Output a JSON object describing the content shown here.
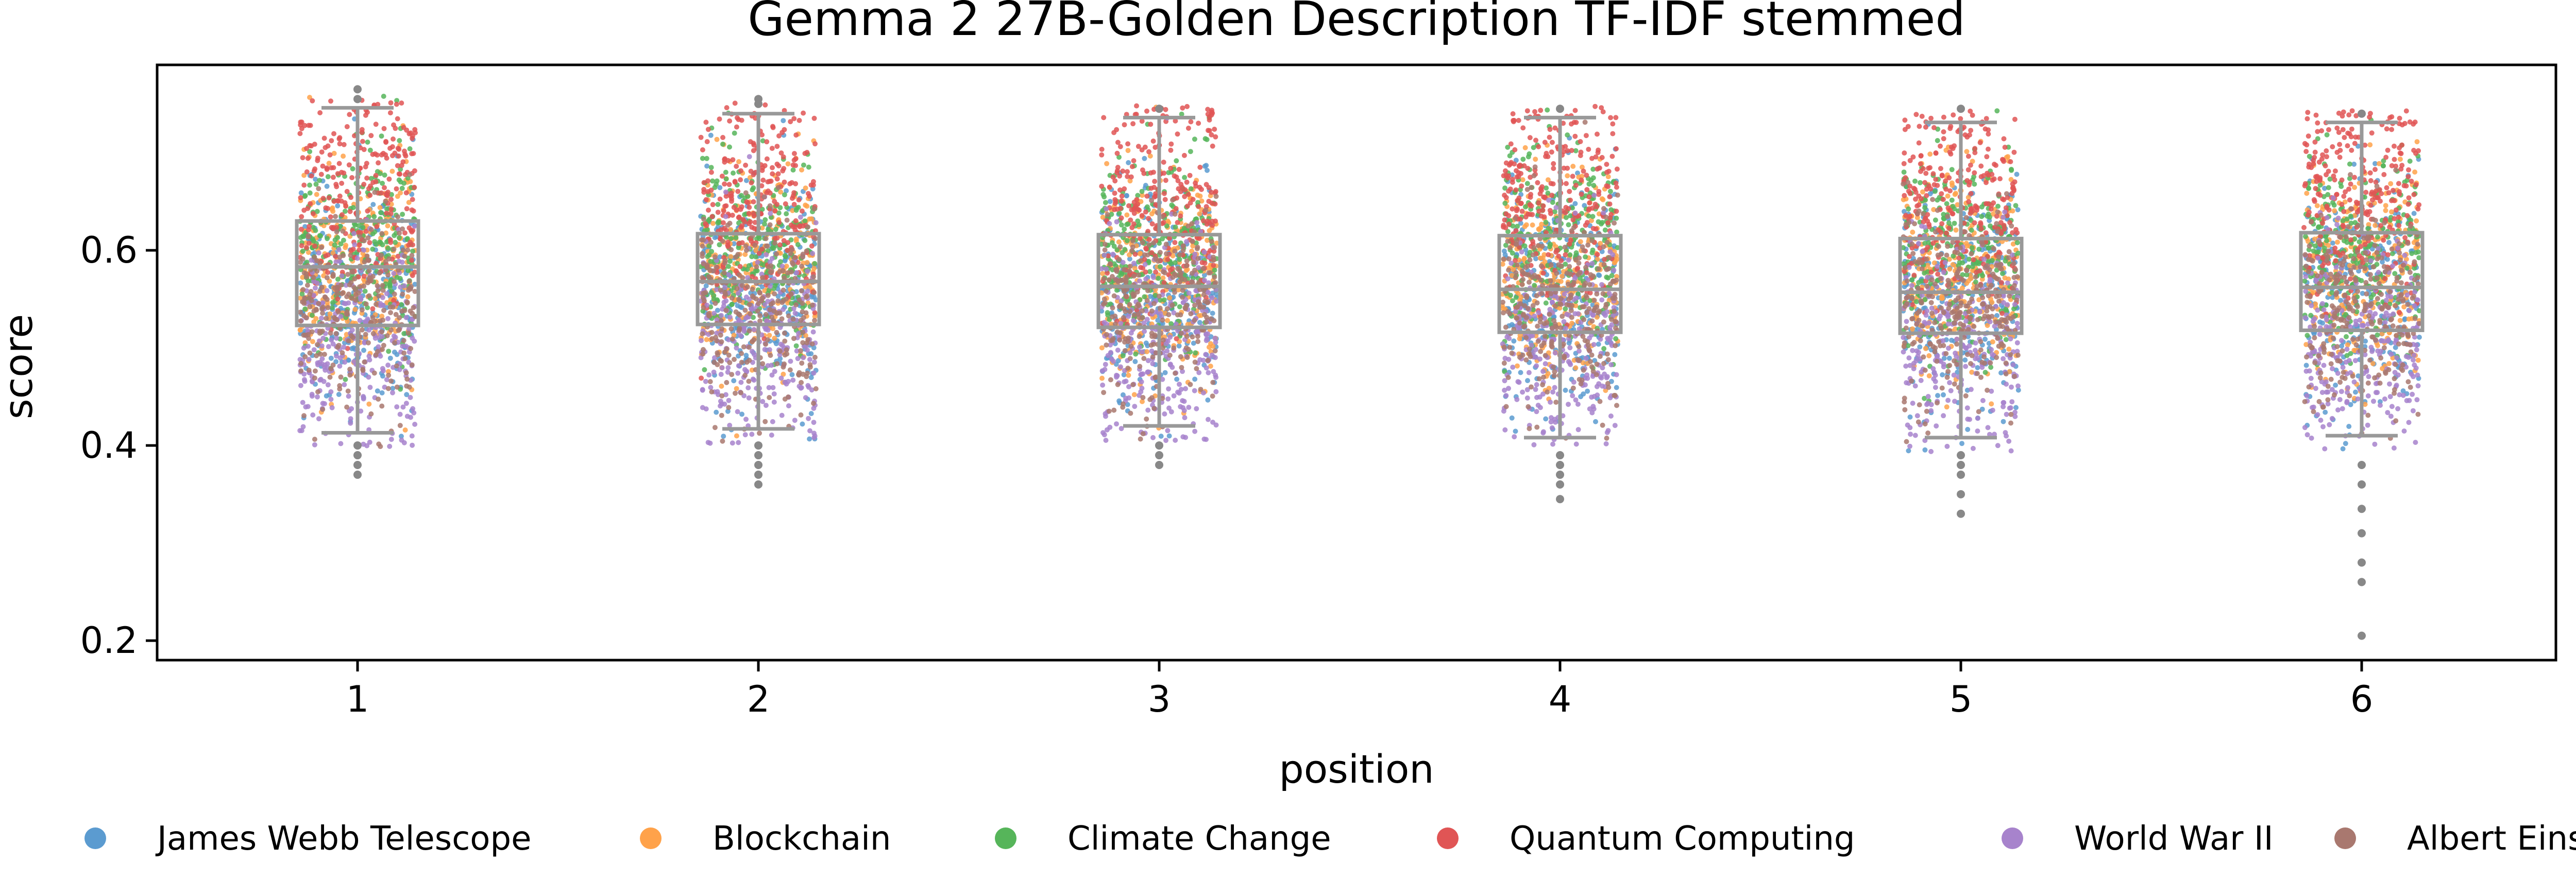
{
  "chart_data": {
    "type": "box-strip",
    "title": "Gemma 2 27B-Golden Description TF-IDF stemmed",
    "xlabel": "position",
    "ylabel": "score",
    "categories": [
      "1",
      "2",
      "3",
      "4",
      "5",
      "6"
    ],
    "ylim": [
      0.18,
      0.79
    ],
    "yticks": [
      {
        "value": 0.2,
        "label": "0.2"
      },
      {
        "value": 0.4,
        "label": "0.4"
      },
      {
        "value": 0.6,
        "label": "0.6"
      }
    ],
    "grid": false,
    "legend_position": "bottom",
    "box_color": "#999999",
    "box_stats": [
      {
        "position": "1",
        "whisker_low": 0.413,
        "q1": 0.523,
        "median": 0.583,
        "q3": 0.63,
        "whisker_high": 0.746
      },
      {
        "position": "2",
        "whisker_low": 0.417,
        "q1": 0.524,
        "median": 0.568,
        "q3": 0.617,
        "whisker_high": 0.74
      },
      {
        "position": "3",
        "whisker_low": 0.42,
        "q1": 0.521,
        "median": 0.563,
        "q3": 0.616,
        "whisker_high": 0.736
      },
      {
        "position": "4",
        "whisker_low": 0.408,
        "q1": 0.516,
        "median": 0.56,
        "q3": 0.615,
        "whisker_high": 0.736
      },
      {
        "position": "5",
        "whisker_low": 0.408,
        "q1": 0.515,
        "median": 0.557,
        "q3": 0.612,
        "whisker_high": 0.731
      },
      {
        "position": "6",
        "whisker_low": 0.41,
        "q1": 0.518,
        "median": 0.562,
        "q3": 0.618,
        "whisker_high": 0.731
      }
    ],
    "outliers": [
      {
        "position": "1",
        "values": [
          0.37,
          0.38,
          0.39,
          0.4,
          0.755,
          0.765
        ]
      },
      {
        "position": "2",
        "values": [
          0.36,
          0.37,
          0.38,
          0.39,
          0.4,
          0.75,
          0.755
        ]
      },
      {
        "position": "3",
        "values": [
          0.38,
          0.39,
          0.4,
          0.745
        ]
      },
      {
        "position": "4",
        "values": [
          0.345,
          0.36,
          0.37,
          0.38,
          0.39,
          0.745
        ]
      },
      {
        "position": "5",
        "values": [
          0.33,
          0.35,
          0.37,
          0.38,
          0.39,
          0.745
        ]
      },
      {
        "position": "6",
        "values": [
          0.205,
          0.26,
          0.28,
          0.31,
          0.335,
          0.36,
          0.38,
          0.74
        ]
      }
    ],
    "series": [
      {
        "name": "James Webb Telescope",
        "color": "#5b9bd0",
        "center": 0.555,
        "spread": 0.06
      },
      {
        "name": "Blockchain",
        "color": "#ffa24a",
        "center": 0.575,
        "spread": 0.055
      },
      {
        "name": "Climate Change",
        "color": "#56b55a",
        "center": 0.6,
        "spread": 0.05
      },
      {
        "name": "Quantum Computing",
        "color": "#e05555",
        "center": 0.655,
        "spread": 0.055
      },
      {
        "name": "World War II",
        "color": "#a783cc",
        "center": 0.5,
        "spread": 0.055
      },
      {
        "name": "Albert Einstein",
        "color": "#a9786f",
        "center": 0.54,
        "spread": 0.05
      }
    ]
  }
}
